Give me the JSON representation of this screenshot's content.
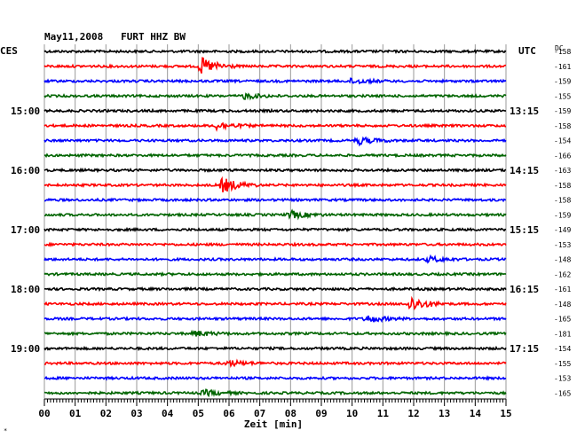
{
  "header": {
    "title": "May11,2008   FURT HHZ BW",
    "left_zone": "CES",
    "right_zone": "UTC",
    "dc_label": "DC",
    "corner_mark": "*"
  },
  "chart_data": {
    "type": "line",
    "title": "May11,2008   FURT HHZ BW",
    "xlabel": "Zeit [min]",
    "xlim": [
      0,
      15
    ],
    "x_ticks": [
      "00",
      "01",
      "02",
      "03",
      "04",
      "05",
      "06",
      "07",
      "08",
      "09",
      "10",
      "11",
      "12",
      "13",
      "14",
      "15"
    ],
    "trace_colors": [
      "#000000",
      "#ff0000",
      "#0000ff",
      "#006400"
    ],
    "left_time_labels": [
      "15:00",
      "16:00",
      "17:00",
      "18:00",
      "19:00"
    ],
    "right_time_labels": [
      "13:15",
      "14:15",
      "15:15",
      "16:15",
      "17:15"
    ],
    "dc_offsets": [
      "-158",
      "-161",
      "-159",
      "-155",
      "-159",
      "-158",
      "-154",
      "-166",
      "-163",
      "-158",
      "-158",
      "-159",
      "-149",
      "-153",
      "-148",
      "-162",
      "-161",
      "-148",
      "-165",
      "-181",
      "-154",
      "-155",
      "-153",
      "-165"
    ],
    "events": [
      {
        "trace": 1,
        "minute": 5.1,
        "amp": 9
      },
      {
        "trace": 2,
        "minute": 10.0,
        "amp": 3
      },
      {
        "trace": 3,
        "minute": 6.5,
        "amp": 3
      },
      {
        "trace": 5,
        "minute": 5.6,
        "amp": 4
      },
      {
        "trace": 6,
        "minute": 10.2,
        "amp": 4
      },
      {
        "trace": 9,
        "minute": 5.8,
        "amp": 8
      },
      {
        "trace": 11,
        "minute": 8.0,
        "amp": 4
      },
      {
        "trace": 14,
        "minute": 12.5,
        "amp": 3
      },
      {
        "trace": 17,
        "minute": 11.9,
        "amp": 8
      },
      {
        "trace": 18,
        "minute": 10.5,
        "amp": 4
      },
      {
        "trace": 19,
        "minute": 4.9,
        "amp": 3
      },
      {
        "trace": 21,
        "minute": 6.0,
        "amp": 3
      },
      {
        "trace": 23,
        "minute": 5.2,
        "amp": 3
      }
    ]
  }
}
